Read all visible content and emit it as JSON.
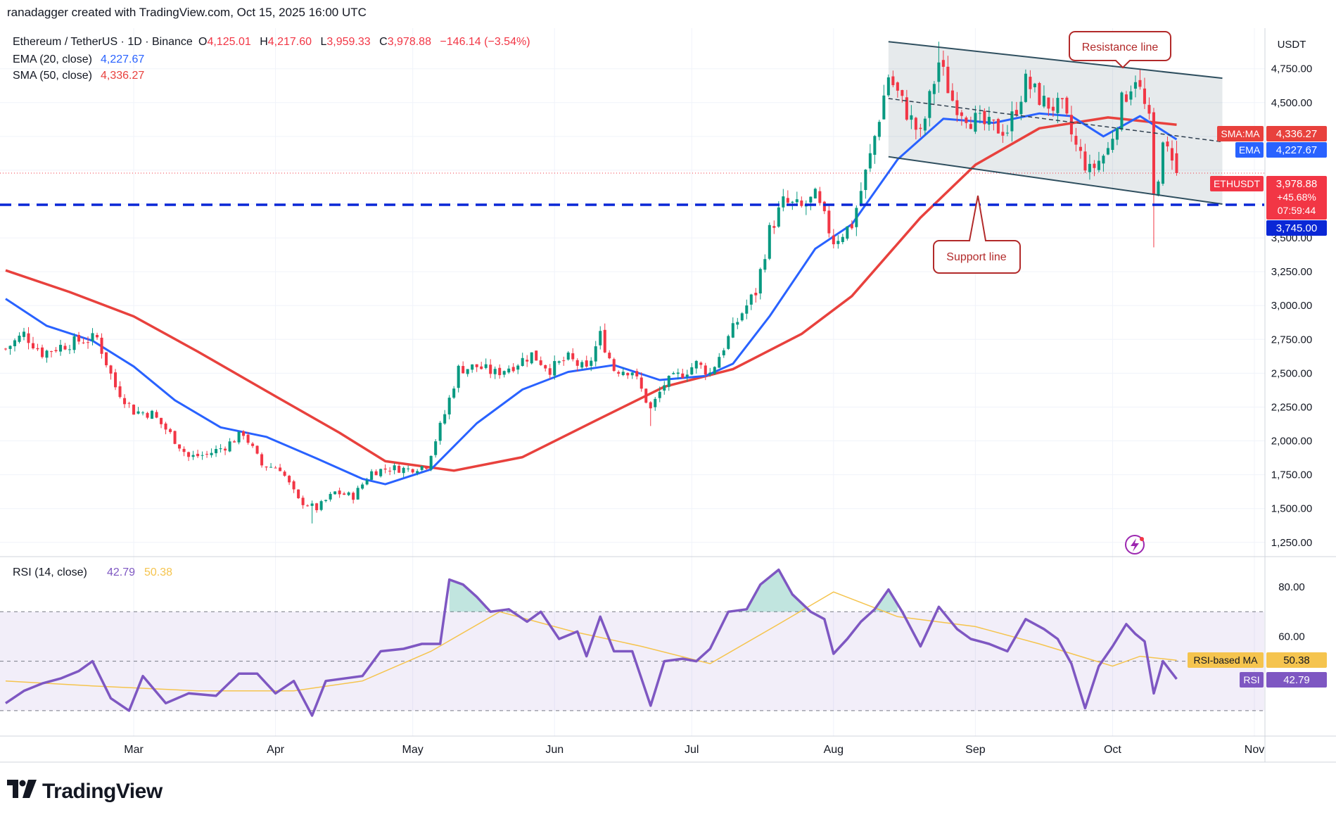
{
  "header": {
    "credit": "ranadagger created with TradingView.com, Oct 15, 2025 16:00 UTC"
  },
  "legend": {
    "symbol": "Ethereum / TetherUS · 1D · Binance",
    "o_label": "O",
    "o_value": "4,125.01",
    "h_label": "H",
    "h_value": "4,217.60",
    "l_label": "L",
    "l_value": "3,959.33",
    "c_label": "C",
    "c_value": "3,978.88",
    "change": "−146.14 (−3.54%)",
    "ema_label": "EMA (20, close)",
    "ema_value": "4,227.67",
    "sma_label": "SMA (50, close)",
    "sma_value": "4,336.27"
  },
  "rsi_legend": {
    "label": "RSI (14, close)",
    "value": "42.79",
    "ma_value": "50.38"
  },
  "axis": {
    "currency": "USDT",
    "months": [
      "Mar",
      "Apr",
      "May",
      "Jun",
      "Jul",
      "Aug",
      "Sep",
      "Oct",
      "Nov"
    ],
    "price_ticks": [
      "4,750.00",
      "4,500.00",
      "3,500.00",
      "3,250.00",
      "3,000.00",
      "2,750.00",
      "2,500.00",
      "2,250.00",
      "2,000.00",
      "1,750.00",
      "1,500.00",
      "1,250.00"
    ],
    "rsi_ticks": [
      "80.00",
      "60.00"
    ]
  },
  "badges": {
    "sma_name": "SMA:MA",
    "sma_value": "4,336.27",
    "ema_name": "EMA",
    "ema_value": "4,227.67",
    "price_name": "ETHUSDT",
    "price_value": "3,978.88",
    "price_change": "+45.68%",
    "price_timer": "07:59:44",
    "support_value": "3,745.00",
    "rsi_ma_name": "RSI-based MA",
    "rsi_ma_value": "50.38",
    "rsi_name": "RSI",
    "rsi_value": "42.79"
  },
  "annotations": {
    "resistance": "Resistance line",
    "support": "Support line"
  },
  "footer": {
    "brand": "TradingView"
  },
  "colors": {
    "up": "#089981",
    "down": "#f23645",
    "ema": "#2962ff",
    "sma": "#e8413d",
    "rsi": "#7e57c2",
    "rsi_ma": "#f5c44e",
    "channel": "#2f4f5f",
    "dashed": "#0a27d6",
    "note": "#b22a2a"
  },
  "chart_data": {
    "type": "candlestick",
    "symbol": "ETHUSDT",
    "x_range": [
      "2025-02-01",
      "2025-10-15"
    ],
    "ylim": [
      1150,
      5050
    ],
    "last": {
      "open": 4125.01,
      "high": 4217.6,
      "low": 3959.33,
      "close": 3978.88
    },
    "horizontal_level": 3745,
    "trendlines": {
      "resistance": [
        [
          "2025-08-13",
          4950
        ],
        [
          "2025-10-25",
          4680
        ]
      ],
      "support": [
        [
          "2025-08-13",
          4100
        ],
        [
          "2025-10-25",
          3750
        ]
      ],
      "mid_dashed": [
        [
          "2025-08-13",
          4530
        ],
        [
          "2025-10-25",
          4210
        ]
      ]
    },
    "closes": [
      [
        "2025-02-01",
        2680
      ],
      [
        "2025-02-05",
        2790
      ],
      [
        "2025-02-09",
        2650
      ],
      [
        "2025-02-13",
        2700
      ],
      [
        "2025-02-17",
        2740
      ],
      [
        "2025-02-21",
        2760
      ],
      [
        "2025-02-25",
        2400
      ],
      [
        "2025-03-01",
        2220
      ],
      [
        "2025-03-05",
        2200
      ],
      [
        "2025-03-09",
        2050
      ],
      [
        "2025-03-13",
        1880
      ],
      [
        "2025-03-17",
        1900
      ],
      [
        "2025-03-21",
        1960
      ],
      [
        "2025-03-25",
        2060
      ],
      [
        "2025-03-29",
        1820
      ],
      [
        "2025-04-02",
        1800
      ],
      [
        "2025-04-06",
        1560
      ],
      [
        "2025-04-10",
        1500
      ],
      [
        "2025-04-14",
        1620
      ],
      [
        "2025-04-18",
        1590
      ],
      [
        "2025-04-22",
        1770
      ],
      [
        "2025-04-26",
        1800
      ],
      [
        "2025-04-30",
        1790
      ],
      [
        "2025-05-04",
        1820
      ],
      [
        "2025-05-08",
        2200
      ],
      [
        "2025-05-11",
        2530
      ],
      [
        "2025-05-15",
        2550
      ],
      [
        "2025-05-19",
        2500
      ],
      [
        "2025-05-23",
        2560
      ],
      [
        "2025-05-27",
        2640
      ],
      [
        "2025-05-31",
        2530
      ],
      [
        "2025-06-04",
        2610
      ],
      [
        "2025-06-08",
        2520
      ],
      [
        "2025-06-11",
        2780
      ],
      [
        "2025-06-14",
        2530
      ],
      [
        "2025-06-18",
        2520
      ],
      [
        "2025-06-22",
        2230
      ],
      [
        "2025-06-25",
        2420
      ],
      [
        "2025-06-29",
        2500
      ],
      [
        "2025-07-02",
        2570
      ],
      [
        "2025-07-05",
        2500
      ],
      [
        "2025-07-09",
        2760
      ],
      [
        "2025-07-12",
        2950
      ],
      [
        "2025-07-15",
        3100
      ],
      [
        "2025-07-18",
        3550
      ],
      [
        "2025-07-21",
        3760
      ],
      [
        "2025-07-25",
        3720
      ],
      [
        "2025-07-28",
        3800
      ],
      [
        "2025-08-01",
        3480
      ],
      [
        "2025-08-05",
        3600
      ],
      [
        "2025-08-09",
        4100
      ],
      [
        "2025-08-13",
        4700
      ],
      [
        "2025-08-17",
        4430
      ],
      [
        "2025-08-20",
        4250
      ],
      [
        "2025-08-24",
        4800
      ],
      [
        "2025-08-27",
        4520
      ],
      [
        "2025-08-31",
        4380
      ],
      [
        "2025-09-04",
        4320
      ],
      [
        "2025-09-08",
        4300
      ],
      [
        "2025-09-12",
        4650
      ],
      [
        "2025-09-16",
        4500
      ],
      [
        "2025-09-20",
        4450
      ],
      [
        "2025-09-23",
        4170
      ],
      [
        "2025-09-26",
        3990
      ],
      [
        "2025-09-30",
        4150
      ],
      [
        "2025-10-03",
        4500
      ],
      [
        "2025-10-06",
        4700
      ],
      [
        "2025-10-09",
        4350
      ],
      [
        "2025-10-10",
        3800
      ],
      [
        "2025-10-12",
        4150
      ],
      [
        "2025-10-14",
        4125
      ],
      [
        "2025-10-15",
        3978.88
      ]
    ],
    "ema20": [
      [
        "2025-02-01",
        3050
      ],
      [
        "2025-02-10",
        2850
      ],
      [
        "2025-02-20",
        2740
      ],
      [
        "2025-03-01",
        2550
      ],
      [
        "2025-03-10",
        2300
      ],
      [
        "2025-03-20",
        2100
      ],
      [
        "2025-03-30",
        2030
      ],
      [
        "2025-04-10",
        1870
      ],
      [
        "2025-04-20",
        1720
      ],
      [
        "2025-04-25",
        1680
      ],
      [
        "2025-05-05",
        1790
      ],
      [
        "2025-05-15",
        2130
      ],
      [
        "2025-05-25",
        2380
      ],
      [
        "2025-06-04",
        2510
      ],
      [
        "2025-06-14",
        2560
      ],
      [
        "2025-06-24",
        2450
      ],
      [
        "2025-07-04",
        2480
      ],
      [
        "2025-07-10",
        2570
      ],
      [
        "2025-07-18",
        2920
      ],
      [
        "2025-07-28",
        3420
      ],
      [
        "2025-08-05",
        3600
      ],
      [
        "2025-08-15",
        4080
      ],
      [
        "2025-08-25",
        4380
      ],
      [
        "2025-09-05",
        4350
      ],
      [
        "2025-09-15",
        4420
      ],
      [
        "2025-09-22",
        4400
      ],
      [
        "2025-09-29",
        4250
      ],
      [
        "2025-10-07",
        4400
      ],
      [
        "2025-10-15",
        4227.67
      ]
    ],
    "sma50": [
      [
        "2025-02-01",
        3260
      ],
      [
        "2025-02-15",
        3100
      ],
      [
        "2025-03-01",
        2920
      ],
      [
        "2025-03-15",
        2660
      ],
      [
        "2025-04-01",
        2330
      ],
      [
        "2025-04-15",
        2060
      ],
      [
        "2025-04-25",
        1850
      ],
      [
        "2025-05-10",
        1780
      ],
      [
        "2025-05-25",
        1880
      ],
      [
        "2025-06-10",
        2150
      ],
      [
        "2025-06-25",
        2400
      ],
      [
        "2025-07-10",
        2530
      ],
      [
        "2025-07-25",
        2790
      ],
      [
        "2025-08-05",
        3070
      ],
      [
        "2025-08-20",
        3650
      ],
      [
        "2025-09-01",
        4040
      ],
      [
        "2025-09-15",
        4310
      ],
      [
        "2025-09-30",
        4390
      ],
      [
        "2025-10-15",
        4336.27
      ]
    ],
    "rsi": {
      "ylim": [
        20,
        92
      ],
      "bands": {
        "upper": 70,
        "middle": 50,
        "lower": 30
      },
      "values": [
        [
          "2025-02-01",
          33
        ],
        [
          "2025-02-05",
          38
        ],
        [
          "2025-02-09",
          41
        ],
        [
          "2025-02-13",
          43
        ],
        [
          "2025-02-17",
          46
        ],
        [
          "2025-02-20",
          50
        ],
        [
          "2025-02-24",
          35
        ],
        [
          "2025-02-28",
          30
        ],
        [
          "2025-03-03",
          44
        ],
        [
          "2025-03-08",
          33
        ],
        [
          "2025-03-13",
          37
        ],
        [
          "2025-03-19",
          36
        ],
        [
          "2025-03-24",
          45
        ],
        [
          "2025-03-28",
          45
        ],
        [
          "2025-04-01",
          37
        ],
        [
          "2025-04-05",
          42
        ],
        [
          "2025-04-09",
          28
        ],
        [
          "2025-04-12",
          42
        ],
        [
          "2025-04-16",
          43
        ],
        [
          "2025-04-20",
          44
        ],
        [
          "2025-04-24",
          54
        ],
        [
          "2025-04-29",
          55
        ],
        [
          "2025-05-03",
          57
        ],
        [
          "2025-05-07",
          57
        ],
        [
          "2025-05-09",
          83
        ],
        [
          "2025-05-12",
          81
        ],
        [
          "2025-05-15",
          76
        ],
        [
          "2025-05-18",
          70
        ],
        [
          "2025-05-22",
          71
        ],
        [
          "2025-05-26",
          66
        ],
        [
          "2025-05-29",
          70
        ],
        [
          "2025-06-02",
          59
        ],
        [
          "2025-06-06",
          62
        ],
        [
          "2025-06-08",
          52
        ],
        [
          "2025-06-11",
          68
        ],
        [
          "2025-06-14",
          54
        ],
        [
          "2025-06-18",
          54
        ],
        [
          "2025-06-22",
          32
        ],
        [
          "2025-06-25",
          50
        ],
        [
          "2025-06-29",
          51
        ],
        [
          "2025-07-02",
          50
        ],
        [
          "2025-07-05",
          55
        ],
        [
          "2025-07-09",
          70
        ],
        [
          "2025-07-13",
          71
        ],
        [
          "2025-07-16",
          81
        ],
        [
          "2025-07-20",
          87
        ],
        [
          "2025-07-23",
          77
        ],
        [
          "2025-07-27",
          70
        ],
        [
          "2025-07-30",
          67
        ],
        [
          "2025-08-01",
          53
        ],
        [
          "2025-08-04",
          59
        ],
        [
          "2025-08-07",
          66
        ],
        [
          "2025-08-10",
          71
        ],
        [
          "2025-08-13",
          79
        ],
        [
          "2025-08-16",
          70
        ],
        [
          "2025-08-20",
          56
        ],
        [
          "2025-08-24",
          72
        ],
        [
          "2025-08-28",
          63
        ],
        [
          "2025-08-31",
          59
        ],
        [
          "2025-09-04",
          57
        ],
        [
          "2025-09-08",
          54
        ],
        [
          "2025-09-12",
          67
        ],
        [
          "2025-09-16",
          63
        ],
        [
          "2025-09-19",
          59
        ],
        [
          "2025-09-22",
          49
        ],
        [
          "2025-09-25",
          31
        ],
        [
          "2025-09-28",
          48
        ],
        [
          "2025-10-01",
          56
        ],
        [
          "2025-10-04",
          65
        ],
        [
          "2025-10-06",
          61
        ],
        [
          "2025-10-08",
          58
        ],
        [
          "2025-10-10",
          37
        ],
        [
          "2025-10-12",
          50
        ],
        [
          "2025-10-15",
          42.79
        ]
      ],
      "ma_values": [
        [
          "2025-02-01",
          42
        ],
        [
          "2025-02-20",
          40
        ],
        [
          "2025-03-15",
          38
        ],
        [
          "2025-04-05",
          38
        ],
        [
          "2025-04-20",
          42
        ],
        [
          "2025-05-05",
          54
        ],
        [
          "2025-05-20",
          70
        ],
        [
          "2025-06-05",
          62
        ],
        [
          "2025-06-20",
          56
        ],
        [
          "2025-07-05",
          49
        ],
        [
          "2025-07-20",
          65
        ],
        [
          "2025-08-01",
          78
        ],
        [
          "2025-08-15",
          68
        ],
        [
          "2025-09-01",
          64
        ],
        [
          "2025-09-15",
          57
        ],
        [
          "2025-10-01",
          48
        ],
        [
          "2025-10-07",
          52
        ],
        [
          "2025-10-15",
          50.38
        ]
      ]
    }
  }
}
